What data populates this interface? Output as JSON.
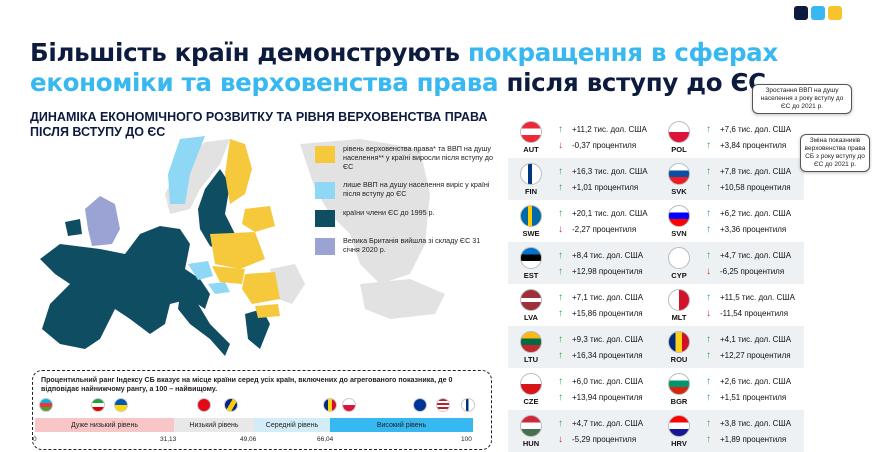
{
  "logo": {
    "colors": [
      "#0d1b3e",
      "#37b8f0",
      "#f7c52b"
    ]
  },
  "title": {
    "part1": "Більшість країн демонструють ",
    "part2": "покращення в сферах економіки та верховенства права",
    "part3": " після вступу до ЄС"
  },
  "subtitle": "ДИНАМІКА ЕКОНОМІЧНОГО РОЗВИТКУ ТА РІВНЯ ВЕРХОВЕНСТВА ПРАВА ПІСЛЯ ВСТУПУ ДО ЄС",
  "legend": [
    {
      "color": "#f5c93b",
      "text": "рівень верховенства права* та ВВП на душу населення** у країні виросли після вступу до ЄС"
    },
    {
      "color": "#8ed8f5",
      "text": "лише ВВП на душу населення виріс у країні після вступу до ЄС"
    },
    {
      "color": "#0f4d63",
      "text": "країни члени ЄС до 1995 р."
    },
    {
      "color": "#9aa3d4",
      "text": "Велика Британія вийшла зі складу ЄС 31 січня 2020 р."
    }
  ],
  "callouts": {
    "gdp": "Зростання ВВП на душу населення з року вступу до ЄС до 2021 р.",
    "rule": "Зміна показників верховенства права СБ з року вступу до ЄС до 2021 р."
  },
  "rank": {
    "description": "Процентильний ранг Індексу СБ вказує на місце країни серед усіх країн, включених до агрегованого показника, де 0 відповідає найнижчому рангу, а 100 – найвищому.",
    "levels": [
      "Дуже низький рівень",
      "Низький рівень",
      "Середній рівень",
      "Високий рівень"
    ],
    "ticks": [
      "0",
      "31,13",
      "49,06",
      "66,04",
      "100"
    ],
    "colors": [
      "#f8c6c6",
      "#e8e8e8",
      "#d2ecf8",
      "#37b8f0"
    ]
  },
  "countries": [
    {
      "code": "AUT",
      "gdp": "+11,2 тис. дол. США",
      "gdp_dir": "up",
      "rule": "-0,37 процентиля",
      "rule_dir": "down"
    },
    {
      "code": "POL",
      "gdp": "+7,6 тис. дол. США",
      "gdp_dir": "up",
      "rule": "+3,84 процентиля",
      "rule_dir": "up"
    },
    {
      "code": "FIN",
      "gdp": "+16,3 тис. дол. США",
      "gdp_dir": "up",
      "rule": "+1,01 процентиля",
      "rule_dir": "up"
    },
    {
      "code": "SVK",
      "gdp": "+7,8 тис. дол. США",
      "gdp_dir": "up",
      "rule": "+10,58 процентиля",
      "rule_dir": "up"
    },
    {
      "code": "SWE",
      "gdp": "+20,1 тис. дол. США",
      "gdp_dir": "up",
      "rule": "-2,27 процентиля",
      "rule_dir": "down"
    },
    {
      "code": "SVN",
      "gdp": "+6,2 тис. дол. США",
      "gdp_dir": "up",
      "rule": "+3,36 процентиля",
      "rule_dir": "up"
    },
    {
      "code": "EST",
      "gdp": "+8,4 тис. дол. США",
      "gdp_dir": "up",
      "rule": "+12,98 процентиля",
      "rule_dir": "up"
    },
    {
      "code": "CYP",
      "gdp": "+4,7 тис. дол. США",
      "gdp_dir": "up",
      "rule": "-6,25 процентиля",
      "rule_dir": "down"
    },
    {
      "code": "LVA",
      "gdp": "+7,1 тис. дол. США",
      "gdp_dir": "up",
      "rule": "+15,86 процентиля",
      "rule_dir": "up"
    },
    {
      "code": "MLT",
      "gdp": "+11,5 тис. дол. США",
      "gdp_dir": "up",
      "rule": "-11,54 процентиля",
      "rule_dir": "down"
    },
    {
      "code": "LTU",
      "gdp": "+9,3 тис. дол. США",
      "gdp_dir": "up",
      "rule": "+16,34 процентиля",
      "rule_dir": "up"
    },
    {
      "code": "ROU",
      "gdp": "+4,1 тис. дол. США",
      "gdp_dir": "up",
      "rule": "+12,27 процентиля",
      "rule_dir": "up"
    },
    {
      "code": "CZE",
      "gdp": "+6,0 тис. дол. США",
      "gdp_dir": "up",
      "rule": "+13,94 процентиля",
      "rule_dir": "up"
    },
    {
      "code": "BGR",
      "gdp": "+2,6 тис. дол. США",
      "gdp_dir": "up",
      "rule": "+1,51 процентиля",
      "rule_dir": "up"
    },
    {
      "code": "HUN",
      "gdp": "+4,7 тис. дол. США",
      "gdp_dir": "up",
      "rule": "-5,29 процентиля",
      "rule_dir": "down"
    },
    {
      "code": "HRV",
      "gdp": "+3,8 тис. дол. США",
      "gdp_dir": "up",
      "rule": "+1,89 процентиля",
      "rule_dir": "up"
    }
  ]
}
